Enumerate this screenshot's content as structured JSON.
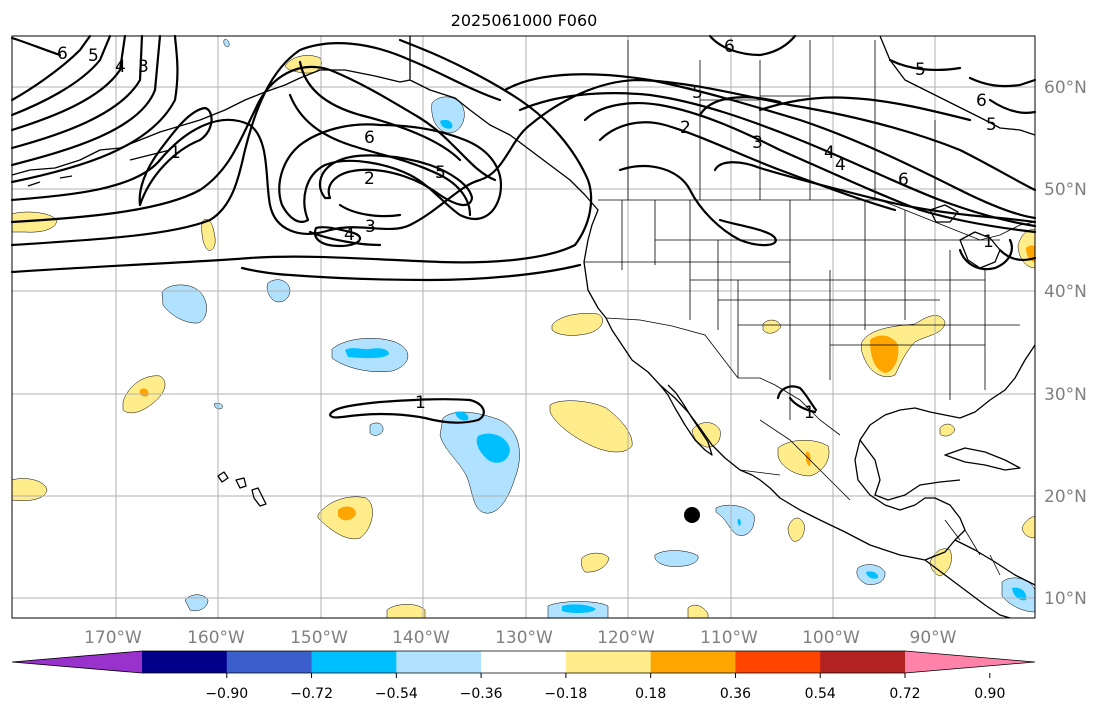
{
  "title": "2025061000 F060",
  "map": {
    "lon_ticks": [
      "170°W",
      "160°W",
      "150°W",
      "140°W",
      "130°W",
      "120°W",
      "110°W",
      "100°W",
      "90°W"
    ],
    "lat_ticks": [
      "60°N",
      "50°N",
      "40°N",
      "30°N",
      "20°N",
      "10°N"
    ],
    "gridlines": true,
    "contour_labels": [
      "6",
      "5",
      "4",
      "3",
      "6",
      "2",
      "5",
      "3",
      "4",
      "6",
      "5",
      "2",
      "3",
      "4",
      "6",
      "4",
      "5",
      "5",
      "6",
      "1",
      "1",
      "1",
      "1"
    ],
    "marker": "black dot near 18°N 113°W"
  },
  "colorbar": {
    "ticks": [
      "−0.90",
      "−0.72",
      "−0.54",
      "−0.36",
      "−0.18",
      "0.18",
      "0.36",
      "0.54",
      "0.72",
      "0.90"
    ],
    "colors": [
      "#9932cc",
      "#00008b",
      "#3a5fcd",
      "#00bfff",
      "#b0e2ff",
      "#ffffff",
      "#ffec8b",
      "#ffa500",
      "#ff4500",
      "#b22222",
      "#ff82ab"
    ],
    "extend": "both"
  }
}
